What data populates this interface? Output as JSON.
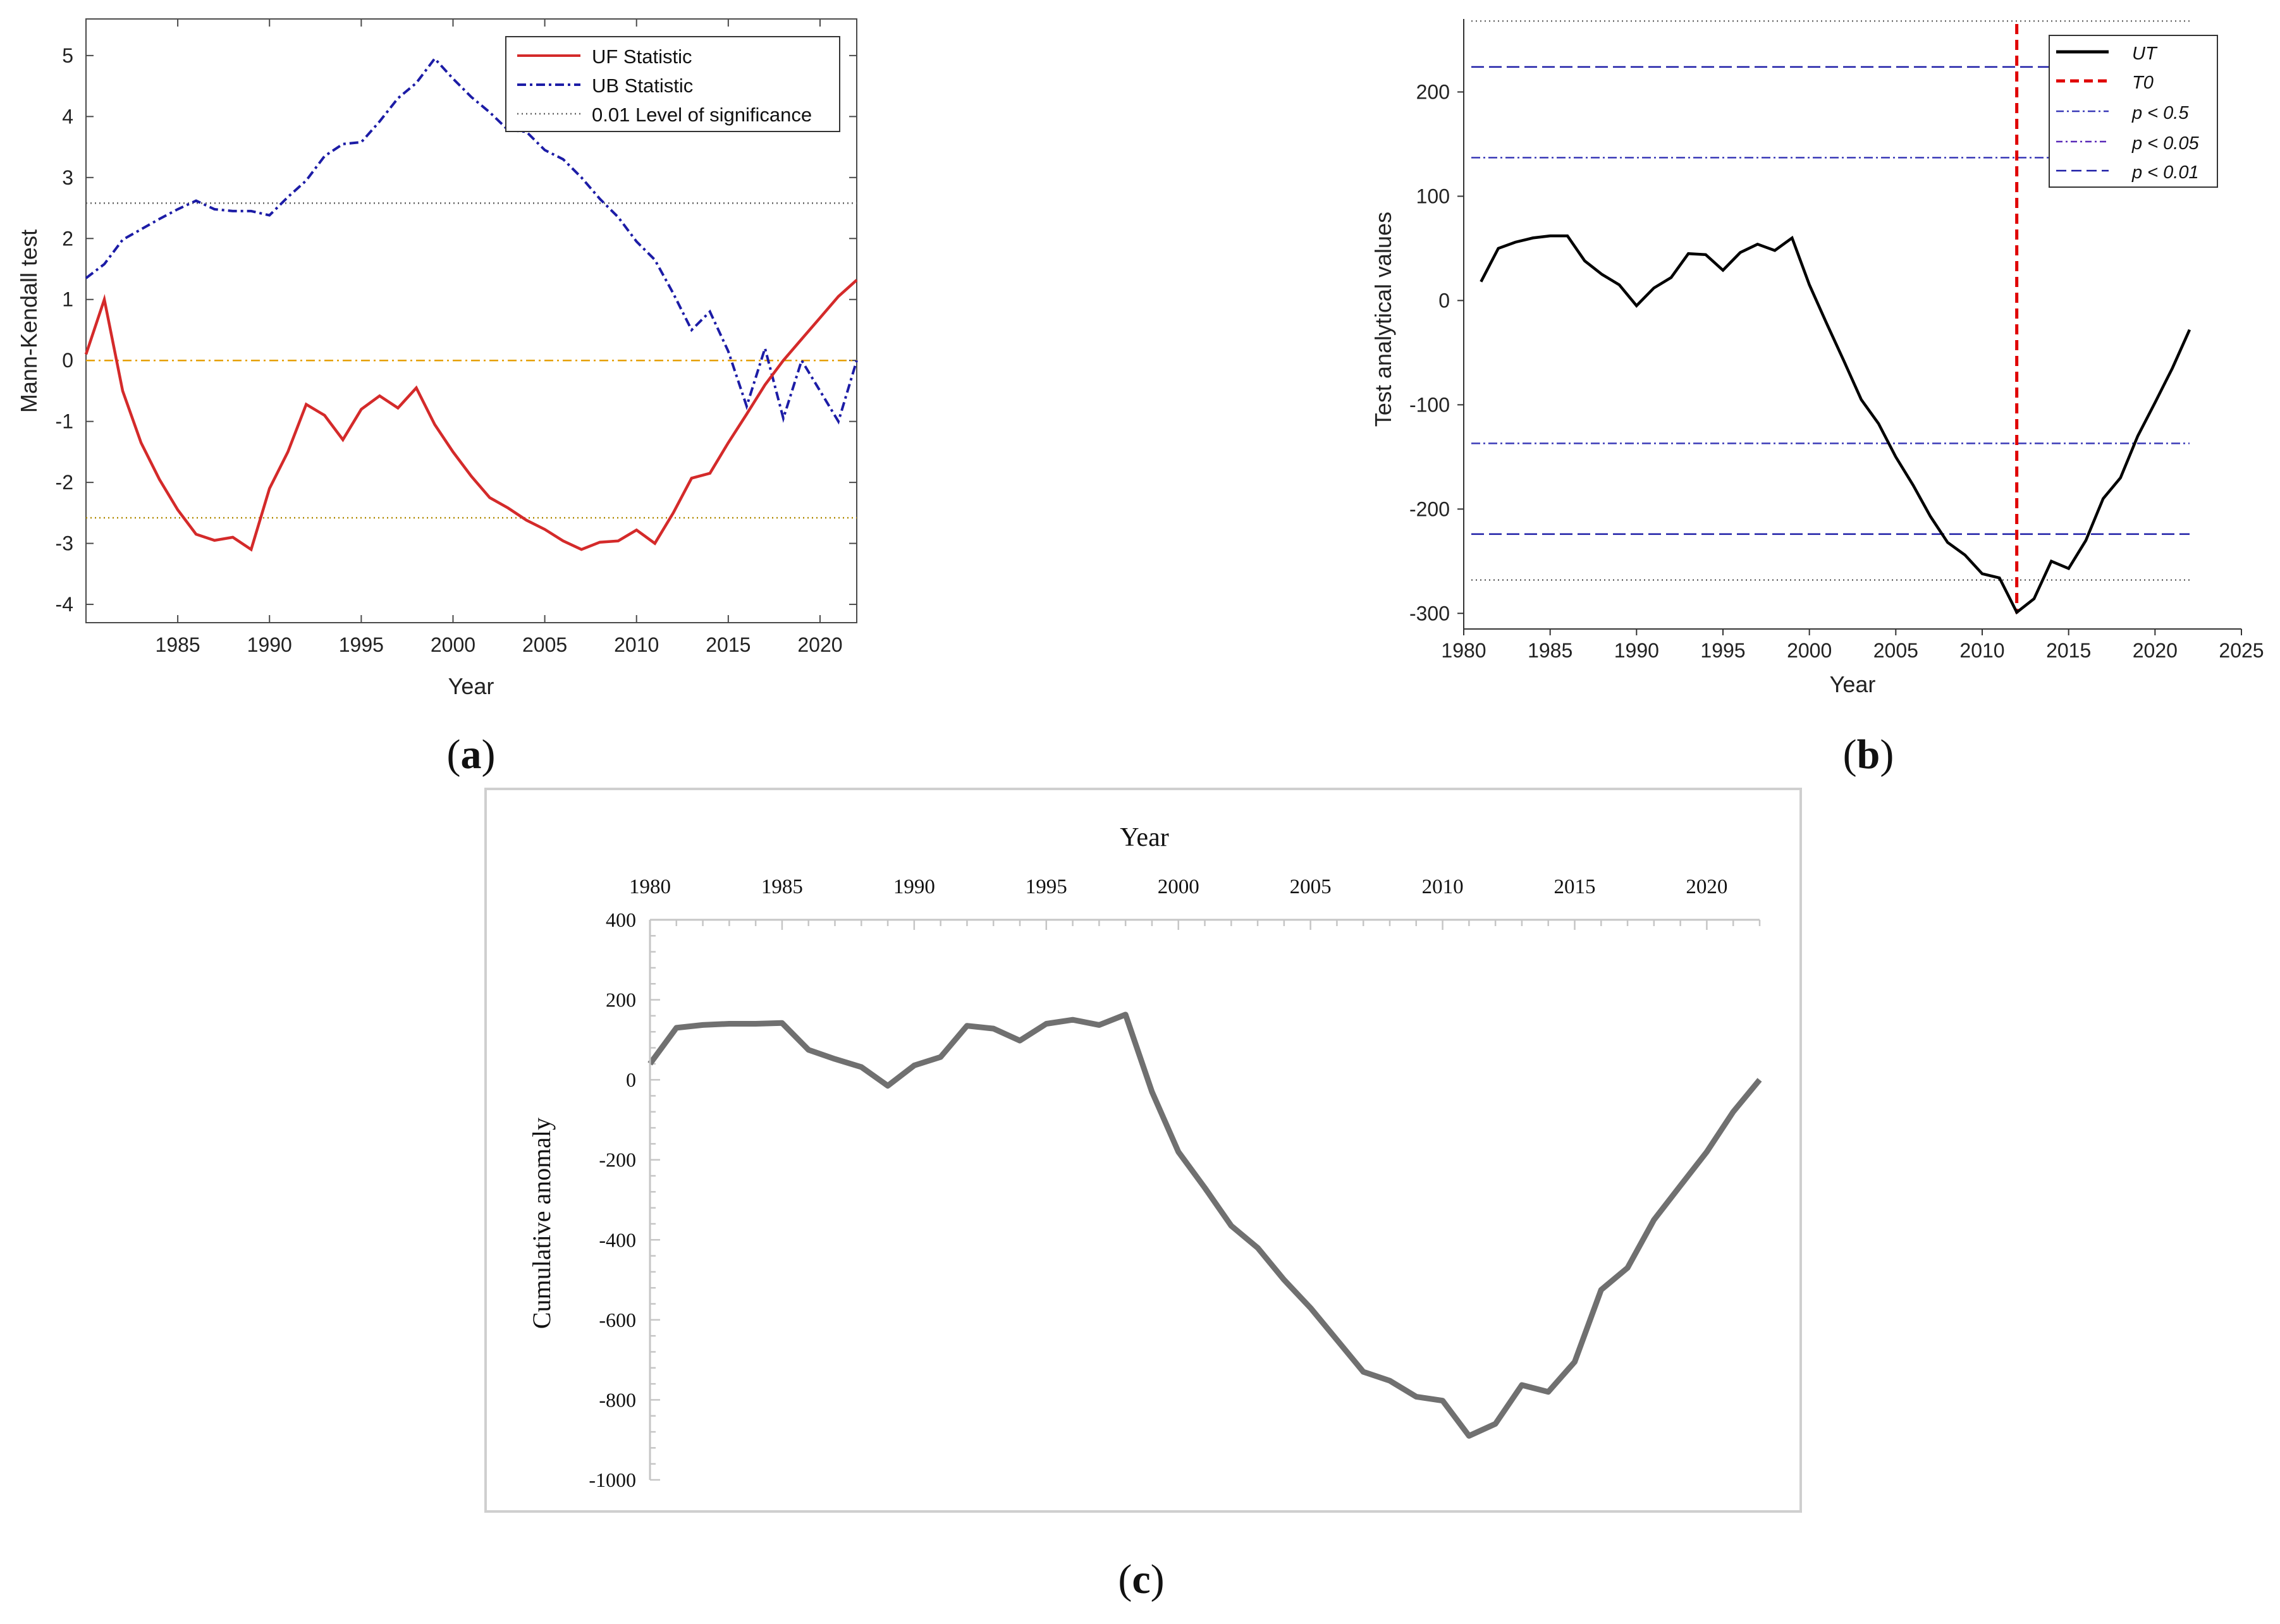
{
  "panel_labels": {
    "a": "a",
    "b": "b",
    "c": "c"
  },
  "colors": {
    "uf": "#d42a2a",
    "ub": "#1c1ca6",
    "sig": "#606060",
    "zero": "#e6a000",
    "ut": "#000000",
    "t0": "#e00000",
    "p05": "#3a3ab8",
    "p005": "#5a2ab8",
    "p001": "#1c1ca6",
    "anomaly": "#707070"
  },
  "chart_data": [
    {
      "type": "line",
      "id": "a",
      "xlabel": "Year",
      "ylabel": "Mann-Kendall test",
      "xlim": [
        1980,
        2022
      ],
      "ylim": [
        -4.3,
        5.6
      ],
      "xticks": [
        1985,
        1990,
        1995,
        2000,
        2005,
        2010,
        2015,
        2020
      ],
      "yticks": [
        -4,
        -3,
        -2,
        -1,
        0,
        1,
        2,
        3,
        4,
        5
      ],
      "legend": [
        "UF Statistic",
        "UB Statistic",
        "0.01 Level of significance"
      ],
      "significance": [
        2.58,
        -2.58
      ],
      "x": [
        1980,
        1981,
        1982,
        1983,
        1984,
        1985,
        1986,
        1987,
        1988,
        1989,
        1990,
        1991,
        1992,
        1993,
        1994,
        1995,
        1996,
        1997,
        1998,
        1999,
        2000,
        2001,
        2002,
        2003,
        2004,
        2005,
        2006,
        2007,
        2008,
        2009,
        2010,
        2011,
        2012,
        2013,
        2014,
        2015,
        2016,
        2017,
        2018,
        2019,
        2020,
        2021,
        2022
      ],
      "series": [
        {
          "name": "UF Statistic",
          "values": [
            0.1,
            1.0,
            -0.5,
            -1.35,
            -1.95,
            -2.45,
            -2.85,
            -2.95,
            -2.9,
            -3.1,
            -2.1,
            -1.5,
            -0.72,
            -0.9,
            -1.3,
            -0.8,
            -0.58,
            -0.78,
            -0.45,
            -1.05,
            -1.5,
            -1.9,
            -2.25,
            -2.42,
            -2.62,
            -2.77,
            -2.96,
            -3.1,
            -2.98,
            -2.96,
            -2.78,
            -3.0,
            -2.5,
            -1.93,
            -1.85,
            -1.35,
            -0.88,
            -0.4,
            0.0,
            0.35,
            0.7,
            1.05,
            1.32
          ]
        },
        {
          "name": "UB Statistic",
          "values": [
            1.35,
            1.58,
            1.98,
            2.15,
            2.32,
            2.48,
            2.62,
            2.48,
            2.45,
            2.45,
            2.38,
            2.68,
            2.95,
            3.35,
            3.55,
            3.58,
            3.92,
            4.3,
            4.55,
            4.95,
            4.62,
            4.32,
            4.07,
            3.78,
            3.75,
            3.45,
            3.3,
            3.0,
            2.65,
            2.35,
            1.95,
            1.65,
            1.1,
            0.5,
            0.8,
            0.15,
            -0.75,
            0.2,
            -0.95,
            0.0,
            -0.5,
            -1.0,
            0.0
          ]
        }
      ]
    },
    {
      "type": "line",
      "id": "b",
      "xlabel": "Year",
      "ylabel": "Test analytical values",
      "xlim": [
        1980,
        2025
      ],
      "ylim": [
        -315,
        270
      ],
      "xticks": [
        1980,
        1985,
        1990,
        1995,
        2000,
        2005,
        2010,
        2015,
        2020,
        2025
      ],
      "yticks": [
        -300,
        -200,
        -100,
        0,
        100,
        200
      ],
      "legend": [
        "UT",
        "T0",
        "p < 0.5",
        "p < 0.05",
        "p < 0.01"
      ],
      "t0": 2012,
      "thresholds": {
        "p_0_5": 137,
        "p_0_01": 224,
        "outer": 268
      },
      "x": [
        1981,
        1982,
        1983,
        1984,
        1985,
        1986,
        1987,
        1988,
        1989,
        1990,
        1991,
        1992,
        1993,
        1994,
        1995,
        1996,
        1997,
        1998,
        1999,
        2000,
        2001,
        2002,
        2003,
        2004,
        2005,
        2006,
        2007,
        2008,
        2009,
        2010,
        2011,
        2012,
        2013,
        2014,
        2015,
        2016,
        2017,
        2018,
        2019,
        2020,
        2021,
        2022
      ],
      "series": [
        {
          "name": "UT",
          "values": [
            18,
            50,
            56,
            60,
            62,
            62,
            38,
            25,
            15,
            -5,
            12,
            22,
            45,
            44,
            29,
            46,
            54,
            48,
            60,
            15,
            -22,
            -58,
            -95,
            -118,
            -150,
            -177,
            -207,
            -232,
            -244,
            -262,
            -266,
            -299,
            -286,
            -250,
            -257,
            -230,
            -190,
            -170,
            -130,
            -98,
            -65,
            -28
          ]
        }
      ]
    },
    {
      "type": "line",
      "id": "c",
      "xlabel": "Year",
      "ylabel": "Cumulative anomaly",
      "xlim": [
        1980,
        2022
      ],
      "ylim": [
        -1000,
        400
      ],
      "xticks": [
        1980,
        1985,
        1990,
        1995,
        2000,
        2005,
        2010,
        2015,
        2020
      ],
      "yticks": [
        -1000,
        -800,
        -600,
        -400,
        -200,
        0,
        200,
        400
      ],
      "x": [
        1980,
        1981,
        1982,
        1983,
        1984,
        1985,
        1986,
        1987,
        1988,
        1989,
        1990,
        1991,
        1992,
        1993,
        1994,
        1995,
        1996,
        1997,
        1998,
        1999,
        2000,
        2001,
        2002,
        2003,
        2004,
        2005,
        2006,
        2007,
        2008,
        2009,
        2010,
        2011,
        2012,
        2013,
        2014,
        2015,
        2016,
        2017,
        2018,
        2019,
        2020,
        2021,
        2022
      ],
      "series": [
        {
          "name": "Cumulative anomaly",
          "values": [
            40,
            130,
            137,
            140,
            140,
            142,
            75,
            52,
            32,
            -15,
            36,
            57,
            135,
            128,
            98,
            140,
            150,
            137,
            163,
            -30,
            -180,
            -270,
            -365,
            -420,
            -500,
            -570,
            -650,
            -730,
            -752,
            -792,
            -802,
            -890,
            -860,
            -763,
            -780,
            -705,
            -525,
            -470,
            -350,
            -265,
            -180,
            -80,
            0
          ]
        }
      ]
    }
  ]
}
